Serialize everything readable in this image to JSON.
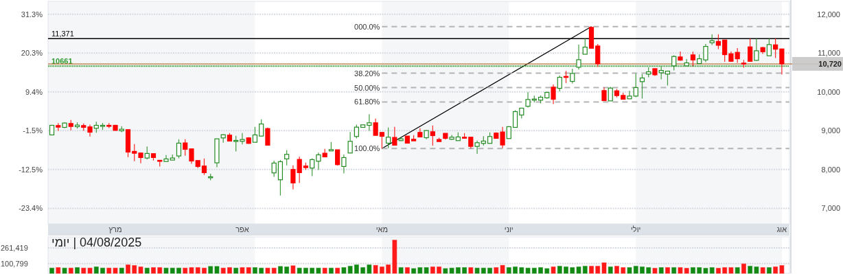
{
  "chart_data": [
    {
      "type": "candlestick",
      "categories": [
        null,
        null,
        null,
        null,
        null,
        null,
        null,
        null,
        null,
        null,
        "מרץ",
        null,
        null,
        null,
        null,
        null,
        null,
        null,
        null,
        null,
        null,
        null,
        null,
        null,
        null,
        null,
        null,
        null,
        null,
        null,
        "אפר",
        null,
        null,
        null,
        null,
        null,
        null,
        null,
        null,
        null,
        null,
        null,
        null,
        null,
        null,
        null,
        null,
        null,
        null,
        null,
        null,
        null,
        "מאי",
        null,
        null,
        null,
        null,
        null,
        null,
        null,
        null,
        null,
        null,
        null,
        null,
        null,
        null,
        null,
        null,
        null,
        null,
        null,
        "יוני",
        null,
        null,
        null,
        null,
        null,
        null,
        null,
        null,
        null,
        null,
        null,
        null,
        null,
        null,
        null,
        null,
        null,
        null,
        null,
        "יולי",
        null,
        null,
        null,
        null,
        null,
        null,
        null,
        null,
        null,
        null,
        null,
        null,
        null,
        null,
        null,
        null,
        null,
        null,
        null,
        null,
        null,
        null,
        "אוג"
      ],
      "ohlc": [
        [
          8891,
          9150,
          8879,
          9138
        ],
        [
          9132,
          9197,
          8997,
          9091
        ],
        [
          9085,
          9215,
          9067,
          9197
        ],
        [
          9185,
          9273,
          9008,
          9109
        ],
        [
          9103,
          9215,
          9055,
          9144
        ],
        [
          9132,
          9185,
          8997,
          9085
        ],
        [
          9097,
          9156,
          8849,
          8961
        ],
        [
          9061,
          9232,
          8949,
          9138
        ],
        [
          9126,
          9197,
          9020,
          9138
        ],
        [
          9138,
          9197,
          9067,
          9120
        ],
        [
          9138,
          9150,
          8997,
          9008
        ],
        [
          8997,
          9114,
          8961,
          9038
        ],
        [
          9026,
          9026,
          8319,
          8449
        ],
        [
          8467,
          8655,
          8213,
          8419
        ],
        [
          8425,
          8425,
          8160,
          8308
        ],
        [
          8296,
          8596,
          8260,
          8414
        ],
        [
          8408,
          8408,
          8231,
          8308
        ],
        [
          8237,
          8237,
          8078,
          8225
        ],
        [
          8207,
          8373,
          8207,
          8272
        ],
        [
          8243,
          8384,
          8243,
          8296
        ],
        [
          8349,
          8779,
          8290,
          8679
        ],
        [
          8685,
          8779,
          8355,
          8520
        ],
        [
          8531,
          8531,
          8149,
          8219
        ],
        [
          8231,
          8231,
          8037,
          8078
        ],
        [
          8090,
          8284,
          7860,
          7919
        ],
        [
          7801,
          7889,
          7725,
          7813
        ],
        [
          8172,
          8790,
          8060,
          8790
        ],
        [
          8814,
          8908,
          8690,
          8896
        ],
        [
          8885,
          8938,
          8732,
          8732
        ],
        [
          8732,
          8867,
          8467,
          8749
        ],
        [
          8726,
          8938,
          8649,
          8773
        ],
        [
          8814,
          8832,
          8661,
          8673
        ],
        [
          8702,
          9097,
          8702,
          8891
        ],
        [
          8861,
          9291,
          8861,
          9173
        ],
        [
          9055,
          9079,
          8626,
          8626
        ],
        [
          7913,
          8225,
          7813,
          8166
        ],
        [
          7736,
          8243,
          7330,
          8202
        ],
        [
          8273,
          8496,
          8107,
          8390
        ],
        [
          8001,
          8107,
          7489,
          7654
        ],
        [
          8260,
          8331,
          7654,
          7919
        ],
        [
          8090,
          8178,
          7990,
          8049
        ],
        [
          8037,
          8290,
          7830,
          8255
        ],
        [
          8213,
          8437,
          7990,
          8378
        ],
        [
          8420,
          8531,
          8325,
          8325
        ],
        [
          8479,
          8708,
          8479,
          8514
        ],
        [
          8508,
          8508,
          8102,
          8125
        ],
        [
          8078,
          8384,
          7901,
          8308
        ],
        [
          8425,
          8967,
          8425,
          8726
        ],
        [
          8850,
          9156,
          8802,
          9091
        ],
        [
          9085,
          9150,
          9085,
          9150
        ],
        [
          9138,
          9426,
          8997,
          9203
        ],
        [
          9203,
          9309,
          8879,
          8879
        ],
        [
          8955,
          8955,
          8537,
          8855
        ],
        [
          8679,
          9079,
          8549,
          8832
        ],
        [
          8826,
          9097,
          8626,
          8626
        ],
        [
          8744,
          8832,
          8732,
          8791
        ],
        [
          8861,
          8861,
          8679,
          8679
        ],
        [
          8779,
          8885,
          8738,
          8738
        ],
        [
          8955,
          9061,
          8838,
          8838
        ],
        [
          8820,
          9014,
          8779,
          9003
        ],
        [
          8973,
          9132,
          8614,
          8873
        ],
        [
          8773,
          8820,
          8720,
          8720
        ],
        [
          8932,
          8932,
          8773,
          8802
        ],
        [
          8779,
          8891,
          8761,
          8832
        ],
        [
          8744,
          8955,
          8744,
          8838
        ],
        [
          8832,
          8938,
          8820,
          8820
        ],
        [
          8832,
          8832,
          8537,
          8596
        ],
        [
          8596,
          8744,
          8402,
          8690
        ],
        [
          8673,
          8861,
          8614,
          8732
        ],
        [
          8673,
          8955,
          8673,
          8850
        ],
        [
          8938,
          8955,
          8802,
          8802
        ],
        [
          8967,
          9097,
          8555,
          8632
        ],
        [
          8797,
          9114,
          8797,
          9103
        ],
        [
          9085,
          9527,
          9085,
          9491
        ],
        [
          9403,
          9580,
          9315,
          9580
        ],
        [
          9627,
          9992,
          9597,
          9803
        ],
        [
          9786,
          9904,
          9727,
          9815
        ],
        [
          9786,
          9904,
          9703,
          9862
        ],
        [
          9845,
          10010,
          9821,
          9986
        ],
        [
          10121,
          10192,
          9685,
          9809
        ],
        [
          10091,
          10422,
          10010,
          10375
        ],
        [
          10398,
          10540,
          10227,
          10375
        ],
        [
          10269,
          10599,
          10216,
          10475
        ],
        [
          10634,
          11217,
          10575,
          10828
        ],
        [
          10969,
          11375,
          10969,
          11152
        ],
        [
          11660,
          11682,
          11123,
          11123
        ],
        [
          11181,
          11234,
          10640,
          10722
        ],
        [
          10033,
          10115,
          9774,
          9774
        ],
        [
          9768,
          10127,
          9768,
          10097
        ],
        [
          10027,
          10074,
          9856,
          9904
        ],
        [
          9909,
          9980,
          9809,
          9809
        ],
        [
          9821,
          10027,
          9821,
          9891
        ],
        [
          9891,
          10469,
          9862,
          10110
        ],
        [
          10263,
          10457,
          9827,
          10357
        ],
        [
          10457,
          10634,
          10375,
          10516
        ],
        [
          10598,
          10598,
          10410,
          10439
        ],
        [
          10492,
          10669,
          10322,
          10551
        ],
        [
          10457,
          10533,
          10163,
          10533
        ],
        [
          10669,
          10940,
          10551,
          10911
        ],
        [
          10899,
          11040,
          10799,
          10816
        ],
        [
          10669,
          10846,
          10669,
          10746
        ],
        [
          10952,
          11034,
          10657,
          10822
        ],
        [
          10728,
          10964,
          10728,
          10852
        ],
        [
          10822,
          11234,
          10763,
          11170
        ],
        [
          11264,
          11482,
          11205,
          11317
        ],
        [
          11299,
          11482,
          11099,
          11199
        ],
        [
          11334,
          11334,
          10775,
          10958
        ],
        [
          10981,
          11040,
          10787,
          10787
        ],
        [
          11017,
          11128,
          10746,
          10852
        ],
        [
          10740,
          10822,
          10622,
          10716
        ],
        [
          11158,
          11376,
          10787,
          10787
        ],
        [
          10810,
          11376,
          10799,
          11058
        ],
        [
          11140,
          11158,
          10976,
          11034
        ],
        [
          10929,
          11376,
          10929,
          11217
        ],
        [
          11211,
          11376,
          10869,
          11099
        ],
        [
          11105,
          11105,
          10445,
          10720
        ]
      ],
      "colors": [
        "#228b22",
        "#ff0000",
        "#228b22",
        "#ff0000",
        "#228b22",
        "#ff0000",
        "#ff0000",
        "#228b22",
        "#228b22",
        "#ff0000",
        "#ff0000",
        "#228b22",
        "#ff0000",
        "#ff0000",
        "#ff0000",
        "#228b22",
        "#ff0000",
        "#ff0000",
        "#228b22",
        "#228b22",
        "#228b22",
        "#ff0000",
        "#ff0000",
        "#ff0000",
        "#ff0000",
        "#228b22",
        "#228b22",
        "#228b22",
        "#ff0000",
        "#228b22",
        "#228b22",
        "#ff0000",
        "#228b22",
        "#228b22",
        "#ff0000",
        "#228b22",
        "#228b22",
        "#228b22",
        "#ff0000",
        "#ff0000",
        "#ff0000",
        "#228b22",
        "#228b22",
        "#ff0000",
        "#228b22",
        "#ff0000",
        "#228b22",
        "#228b22",
        "#228b22",
        "#228b22",
        "#228b22",
        "#ff0000",
        "#ff0000",
        "#228b22",
        "#ff0000",
        "#228b22",
        "#ff0000",
        "#ff0000",
        "#ff0000",
        "#228b22",
        "#ff0000",
        "#ff0000",
        "#ff0000",
        "#228b22",
        "#228b22",
        "#ff0000",
        "#ff0000",
        "#228b22",
        "#228b22",
        "#228b22",
        "#ff0000",
        "#ff0000",
        "#228b22",
        "#228b22",
        "#228b22",
        "#228b22",
        "#228b22",
        "#228b22",
        "#228b22",
        "#ff0000",
        "#228b22",
        "#ff0000",
        "#228b22",
        "#228b22",
        "#228b22",
        "#ff0000",
        "#ff0000",
        "#ff0000",
        "#228b22",
        "#ff0000",
        "#ff0000",
        "#228b22",
        "#228b22",
        "#228b22",
        "#228b22",
        "#ff0000",
        "#228b22",
        "#228b22",
        "#228b22",
        "#ff0000",
        "#228b22",
        "#ff0000",
        "#228b22",
        "#228b22",
        "#228b22",
        "#ff0000",
        "#ff0000",
        "#ff0000",
        "#ff0000",
        "#ff0000",
        "#ff0000",
        "#228b22",
        "#ff0000",
        "#228b22",
        "#ff0000",
        "#ff0000"
      ],
      "series": [
        {
          "type": "line",
          "values": [
            null,
            null,
            null,
            null,
            null,
            null,
            null,
            null,
            null,
            null,
            null,
            null,
            null,
            null,
            null,
            null,
            null,
            null,
            null,
            null,
            null,
            null,
            null,
            null,
            null,
            null,
            null,
            null,
            null,
            null,
            null,
            null,
            null,
            null,
            null,
            null,
            null,
            null,
            null,
            null,
            null,
            null,
            null,
            null,
            null,
            null,
            null,
            null,
            null,
            null,
            null,
            null,
            8540,
            null,
            null,
            null,
            null,
            null,
            null,
            null,
            null,
            null,
            null,
            null,
            null,
            null,
            null,
            null,
            null,
            null,
            null,
            null,
            null,
            null,
            null,
            null,
            null,
            null,
            null,
            null,
            null,
            null,
            null,
            null,
            null,
            11680,
            null,
            null,
            null,
            null,
            null,
            null,
            null,
            null,
            null,
            null,
            null,
            null,
            null,
            null,
            null,
            null,
            null,
            null,
            null,
            null,
            null,
            null,
            null,
            null,
            null,
            null,
            null,
            null,
            null,
            null
          ],
          "color": "#000000"
        }
      ],
      "ylim": [
        6600,
        12330
      ],
      "yticks": [
        {
          "value": 7000,
          "label": "7,000"
        },
        {
          "value": 8000,
          "label": "8,000"
        },
        {
          "value": 9000,
          "label": "9,000"
        },
        {
          "value": 10000,
          "label": "10,000"
        },
        {
          "value": 11000,
          "label": "11,000"
        },
        {
          "value": 12000,
          "label": "12,000"
        }
      ],
      "y2lim": [
        -27.8,
        34.9
      ],
      "y2ticks": [
        {
          "value": -23.4,
          "label": "-23.4%"
        },
        {
          "value": -12.5,
          "label": "-12.5%"
        },
        {
          "value": -1.5,
          "label": "-1.5%"
        },
        {
          "value": 9.4,
          "label": "9.4%"
        },
        {
          "value": 20.3,
          "label": "20.3%"
        },
        {
          "value": 31.3,
          "label": "31.3%"
        }
      ],
      "grid": "y",
      "annotations": [
        "000.0%",
        "38.20%",
        "50.00%",
        "61.80%",
        "100.0%"
      ],
      "ref_lines": [
        {
          "axis": "y",
          "value": 11371,
          "label": "11,371"
        },
        {
          "axis": "y",
          "value": 10661,
          "label": "10661",
          "color": "#2e9a2e",
          "line_style": "dotted"
        },
        {
          "axis": "y",
          "value": 10720,
          "label": "10,720",
          "color": "#b87333"
        },
        {
          "axis": "y",
          "value": 11680,
          "color": "#b4b4b4",
          "line_style": "dashed"
        },
        {
          "axis": "y",
          "value": 10480,
          "color": "#b4b4b4",
          "line_style": "dashed"
        },
        {
          "axis": "y",
          "value": 10110,
          "color": "#b4b4b4",
          "line_style": "dashed"
        },
        {
          "axis": "y",
          "value": 9740,
          "color": "#b4b4b4",
          "line_style": "dashed"
        },
        {
          "axis": "y",
          "value": 8540,
          "color": "#b4b4b4",
          "line_style": "dashed"
        }
      ]
    },
    {
      "type": "bar",
      "title": "04/08/2025 | יומי",
      "categories": [
        null,
        null,
        null,
        null,
        null,
        null,
        null,
        null,
        null,
        null,
        null,
        null,
        null,
        null,
        null,
        null,
        null,
        null,
        null,
        null,
        null,
        null,
        null,
        null,
        null,
        null,
        null,
        null,
        null,
        null,
        null,
        null,
        null,
        null,
        null,
        null,
        null,
        null,
        null,
        null,
        null,
        null,
        null,
        null,
        null,
        null,
        null,
        null,
        null,
        null,
        null,
        null,
        null,
        null,
        null,
        null,
        null,
        null,
        null,
        null,
        null,
        null,
        null,
        null,
        null,
        null,
        null,
        null,
        null,
        null,
        null,
        null,
        null,
        null,
        null,
        null,
        null,
        null,
        null,
        null,
        null,
        null,
        null,
        null,
        null,
        null,
        null,
        null,
        null,
        null,
        null,
        null,
        null,
        null,
        null,
        null,
        null,
        null,
        null,
        null,
        null,
        null,
        null,
        null,
        null,
        null,
        null,
        null,
        null,
        null,
        null,
        null,
        null,
        null,
        null,
        null
      ],
      "values": [
        54000,
        59000,
        54000,
        54000,
        59000,
        54000,
        54000,
        66000,
        54000,
        54000,
        54000,
        54000,
        87000,
        80000,
        66000,
        54000,
        59000,
        59000,
        54000,
        54000,
        54000,
        54000,
        59000,
        59000,
        54000,
        71000,
        71000,
        54000,
        59000,
        54000,
        59000,
        59000,
        59000,
        54000,
        54000,
        54000,
        71000,
        66000,
        78000,
        54000,
        54000,
        54000,
        54000,
        54000,
        54000,
        54000,
        59000,
        73000,
        87000,
        59000,
        87000,
        82000,
        66000,
        87000,
        341000,
        59000,
        59000,
        49000,
        59000,
        59000,
        66000,
        66000,
        49000,
        54000,
        59000,
        59000,
        59000,
        54000,
        54000,
        54000,
        59000,
        82000,
        59000,
        66000,
        59000,
        54000,
        54000,
        59000,
        49000,
        66000,
        73000,
        66000,
        59000,
        66000,
        73000,
        73000,
        73000,
        108000,
        66000,
        73000,
        59000,
        59000,
        73000,
        66000,
        59000,
        52000,
        59000,
        59000,
        59000,
        59000,
        52000,
        59000,
        59000,
        52000,
        59000,
        52000,
        59000,
        59000,
        59000,
        97000,
        73000,
        66000,
        59000,
        59000,
        66000,
        80000
      ],
      "colors": [
        "#138a13",
        "#ff1a1a",
        "#138a13",
        "#ff1a1a",
        "#138a13",
        "#ff1a1a",
        "#ff1a1a",
        "#138a13",
        "#138a13",
        "#ff1a1a",
        "#ff1a1a",
        "#138a13",
        "#ff1a1a",
        "#ff1a1a",
        "#ff1a1a",
        "#138a13",
        "#ff1a1a",
        "#ff1a1a",
        "#138a13",
        "#138a13",
        "#138a13",
        "#ff1a1a",
        "#ff1a1a",
        "#ff1a1a",
        "#ff1a1a",
        "#138a13",
        "#138a13",
        "#ff1a1a",
        "#ff1a1a",
        "#138a13",
        "#ff1a1a",
        "#ff1a1a",
        "#138a13",
        "#138a13",
        "#ff1a1a",
        "#ff1a1a",
        "#138a13",
        "#138a13",
        "#ff1a1a",
        "#138a13",
        "#138a13",
        "#138a13",
        "#138a13",
        "#ff1a1a",
        "#138a13",
        "#ff1a1a",
        "#138a13",
        "#138a13",
        "#138a13",
        "#138a13",
        "#138a13",
        "#ff1a1a",
        "#ff1a1a",
        "#ff1a1a",
        "#ff1a1a",
        "#138a13",
        "#ff1a1a",
        "#138a13",
        "#138a13",
        "#138a13",
        "#ff1a1a",
        "#ff1a1a",
        "#138a13",
        "#138a13",
        "#138a13",
        "#138a13",
        "#ff1a1a",
        "#138a13",
        "#138a13",
        "#138a13",
        "#ff1a1a",
        "#ff1a1a",
        "#138a13",
        "#138a13",
        "#138a13",
        "#138a13",
        "#138a13",
        "#138a13",
        "#138a13",
        "#ff1a1a",
        "#138a13",
        "#138a13",
        "#138a13",
        "#138a13",
        "#138a13",
        "#ff1a1a",
        "#ff1a1a",
        "#ff1a1a",
        "#138a13",
        "#ff1a1a",
        "#ff1a1a",
        "#138a13",
        "#138a13",
        "#138a13",
        "#138a13",
        "#ff1a1a",
        "#138a13",
        "#ff1a1a",
        "#138a13",
        "#ff1a1a",
        "#ff1a1a",
        "#138a13",
        "#138a13",
        "#138a13",
        "#138a13",
        "#ff1a1a",
        "#ff1a1a",
        "#ff1a1a",
        "#138a13",
        "#ff1a1a",
        "#138a13",
        "#138a13",
        "#ff1a1a",
        "#138a13",
        "#ff1a1a",
        "#ff1a1a"
      ],
      "ylim": [
        0,
        374000
      ],
      "yticks": [
        {
          "value": 100799,
          "label": "100,799"
        },
        {
          "value": 261419,
          "label": "261,419"
        }
      ],
      "grid": "y",
      "tick_labels": "y"
    }
  ]
}
